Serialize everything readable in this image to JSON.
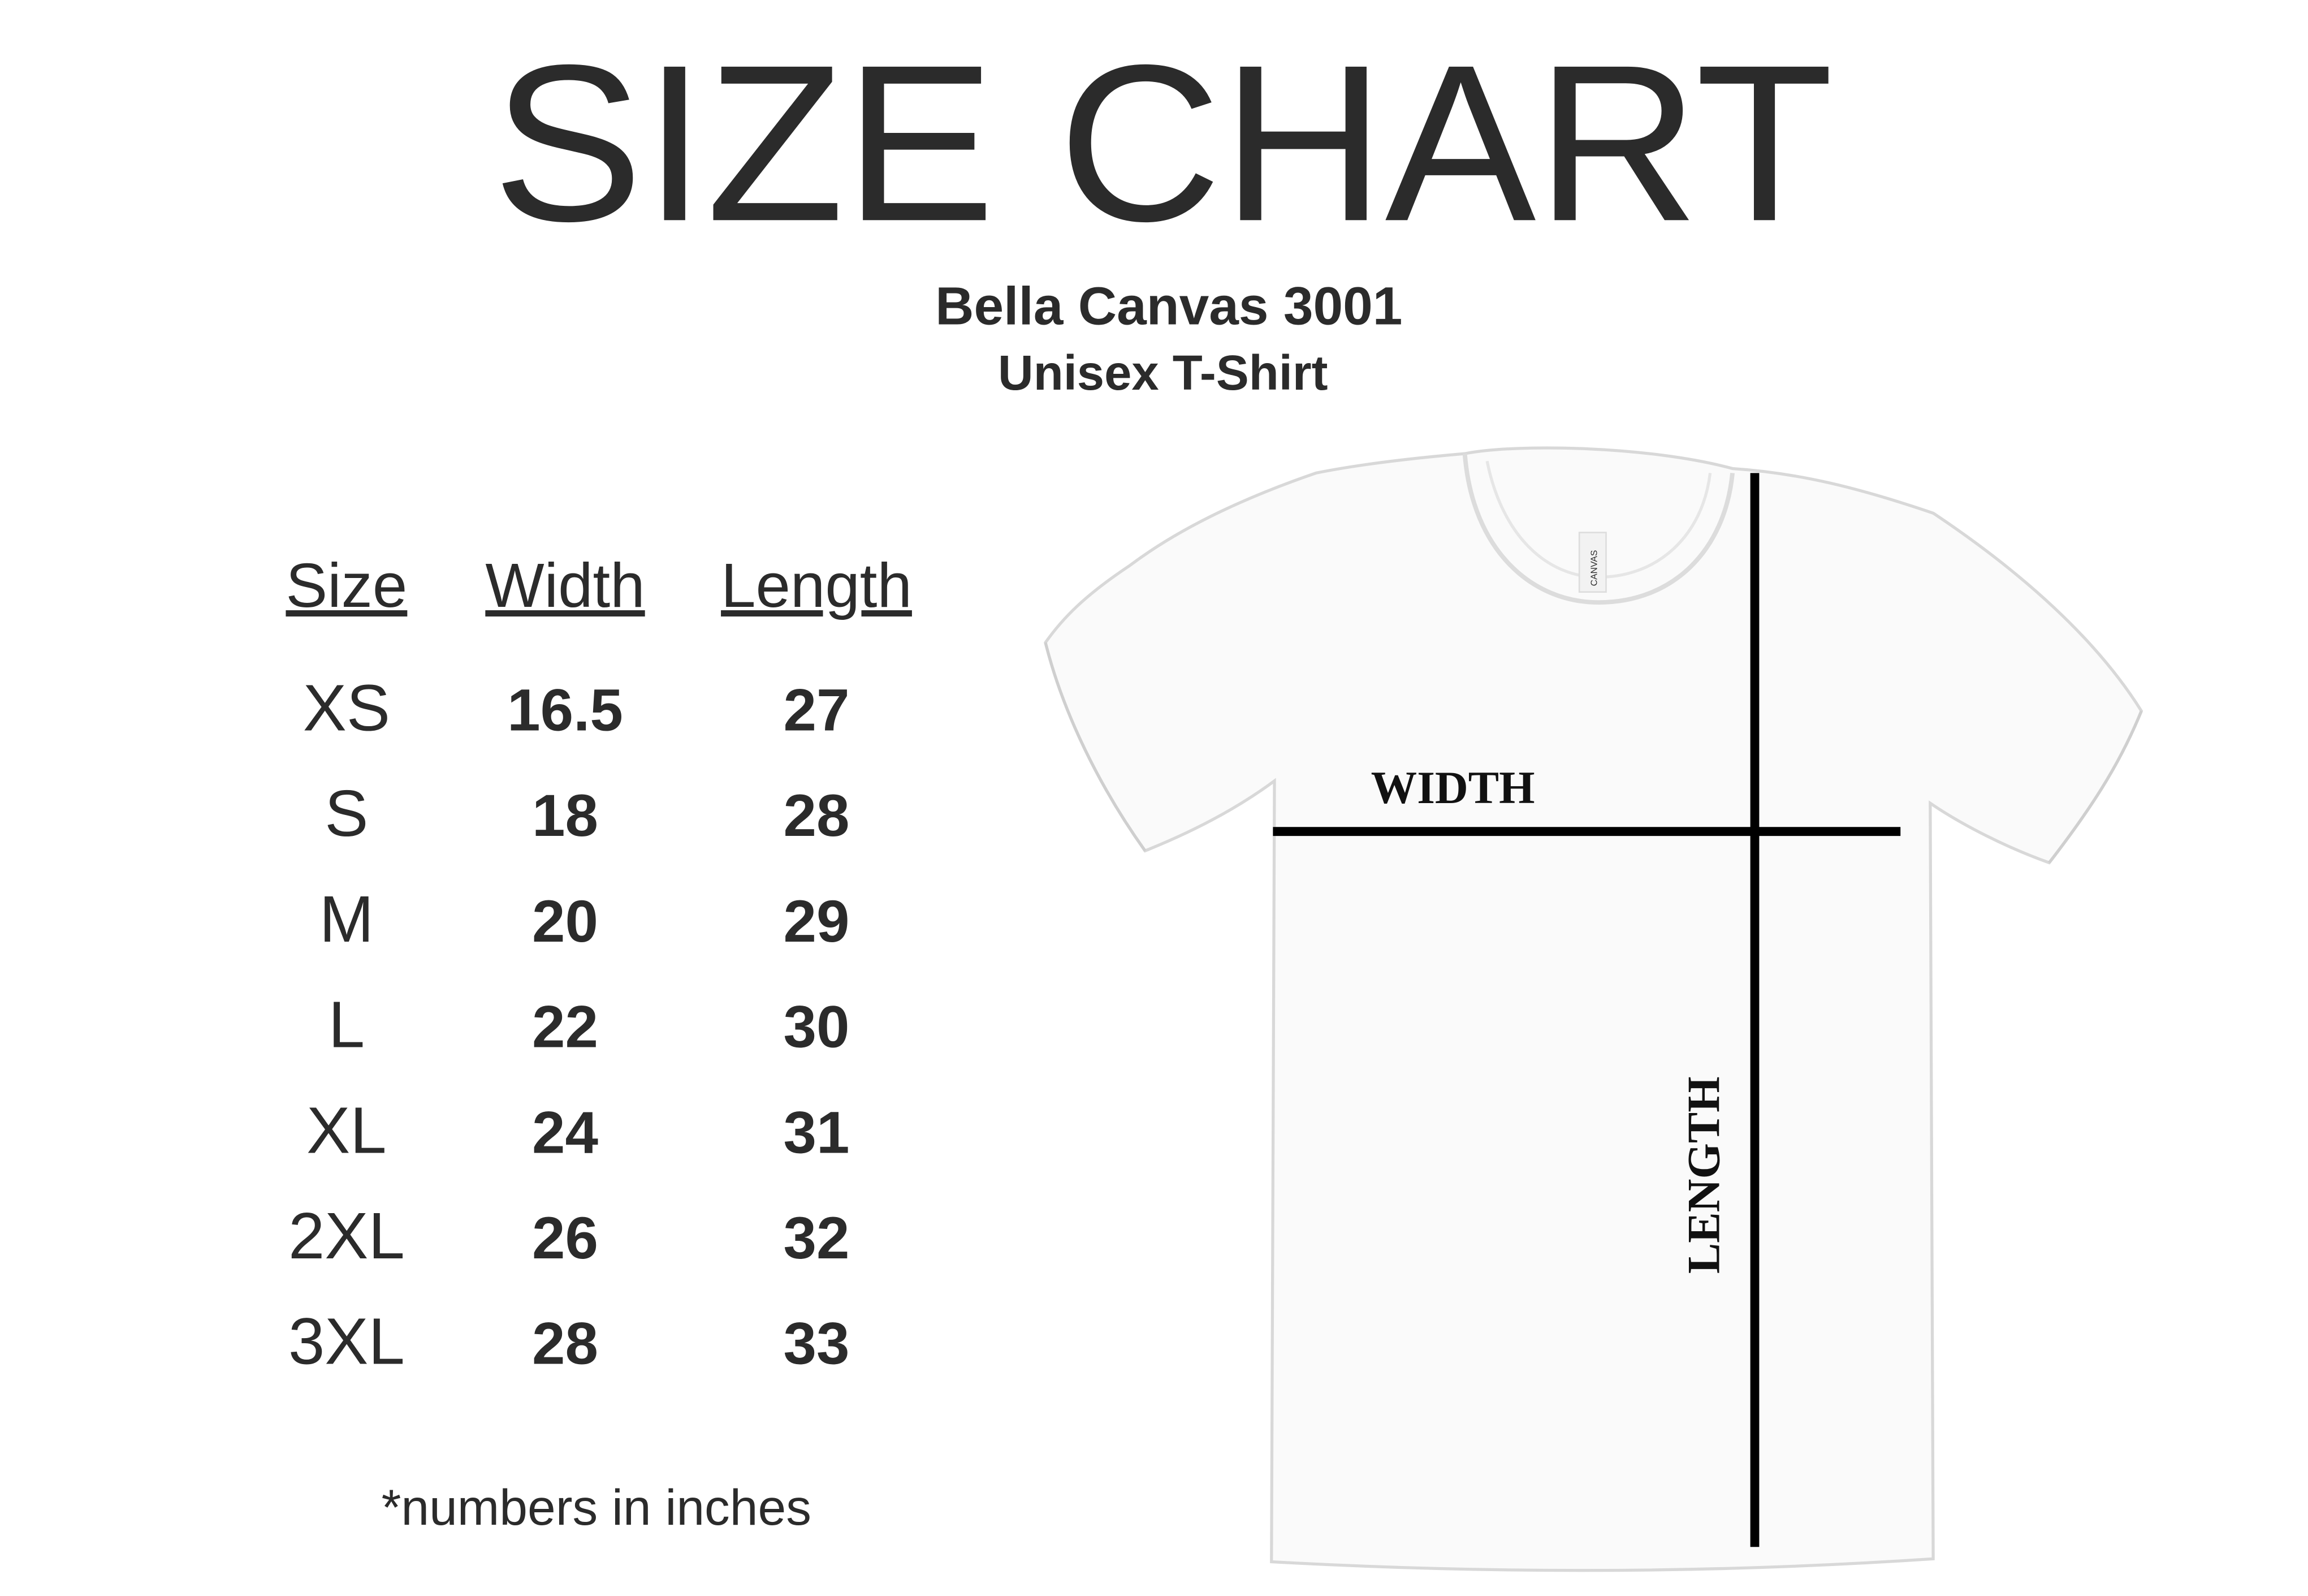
{
  "header": {
    "title": "SIZE CHART",
    "subtitle": [
      "Bella Canvas 3001",
      "Unisex T-Shirt"
    ]
  },
  "table": {
    "headers": [
      "Size",
      "Width",
      "Length"
    ],
    "rows": [
      [
        "XS",
        16.5,
        27
      ],
      [
        "S",
        18,
        28
      ],
      [
        "M",
        20,
        29
      ],
      [
        "L",
        22,
        30
      ],
      [
        "XL",
        24,
        31
      ],
      [
        "2XL",
        26,
        32
      ],
      [
        "3XL",
        28,
        33
      ]
    ]
  },
  "footnote": "*numbers in inches",
  "diagram": {
    "width_label": "WIDTH",
    "length_label": "LENGTH",
    "tag_label": "CANVAS"
  }
}
